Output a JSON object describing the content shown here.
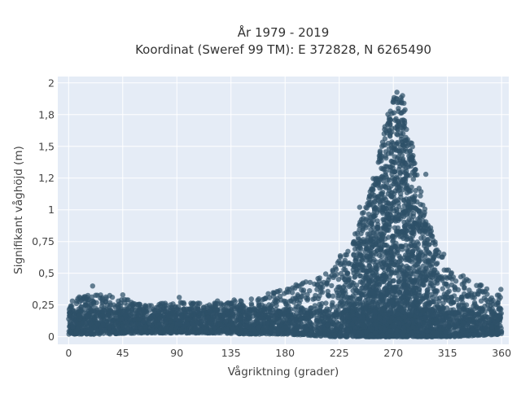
{
  "chart_data": {
    "type": "scatter",
    "title": "År 1979 - 2019",
    "subtitle": "Koordinat (Sweref 99 TM): E 372828, N 6265490",
    "xlabel": "Vågriktning (grader)",
    "ylabel": "Signifikant våghöjd (m)",
    "xlim": [
      -9,
      366
    ],
    "ylim": [
      -0.06,
      2.05
    ],
    "x_ticks": [
      0,
      45,
      90,
      135,
      180,
      225,
      270,
      315,
      360
    ],
    "x_tick_labels": [
      "0",
      "45",
      "90",
      "135",
      "180",
      "225",
      "270",
      "315",
      "360"
    ],
    "y_ticks": [
      0,
      0.25,
      0.5,
      0.75,
      1,
      1.25,
      1.5,
      1.75,
      2
    ],
    "y_tick_labels": [
      "0",
      "0,25",
      "0,5",
      "0,75",
      "1",
      "1,2",
      "1,5",
      "1,8",
      "2"
    ],
    "grid": true,
    "colors": {
      "plot_background": "#e5ecf6",
      "grid": "#ffffff",
      "marker": "#2e5168"
    },
    "series": [
      {
        "x_range": [
          0,
          360
        ],
        "y_range": [
          0,
          1.95
        ],
        "envelope": {
          "x": [
            0,
            30,
            60,
            90,
            120,
            150,
            180,
            200,
            220,
            240,
            255,
            265,
            272,
            278,
            285,
            295,
            305,
            320,
            340,
            360
          ],
          "y_max": [
            0.3,
            0.35,
            0.26,
            0.27,
            0.28,
            0.3,
            0.38,
            0.45,
            0.55,
            0.85,
            1.3,
            1.75,
            1.95,
            1.9,
            1.55,
            1.05,
            0.75,
            0.5,
            0.42,
            0.38
          ],
          "y_min": [
            0.02,
            0.02,
            0.03,
            0.03,
            0.03,
            0.02,
            0.02,
            0.01,
            0.0,
            0.0,
            0.0,
            0.0,
            0.0,
            0.0,
            0.0,
            0.0,
            0.0,
            0.0,
            0.01,
            0.02
          ]
        },
        "outliers": [
          {
            "x": 20,
            "y": 0.4
          },
          {
            "x": 45,
            "y": 0.33
          },
          {
            "x": 92,
            "y": 0.31
          },
          {
            "x": 328,
            "y": 0.48
          },
          {
            "x": 312,
            "y": 0.65
          },
          {
            "x": 297,
            "y": 1.28
          },
          {
            "x": 242,
            "y": 1.02
          }
        ]
      }
    ]
  }
}
